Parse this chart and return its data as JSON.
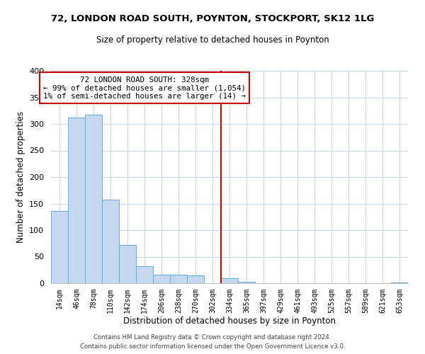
{
  "title": "72, LONDON ROAD SOUTH, POYNTON, STOCKPORT, SK12 1LG",
  "subtitle": "Size of property relative to detached houses in Poynton",
  "xlabel": "Distribution of detached houses by size in Poynton",
  "ylabel": "Number of detached properties",
  "bin_labels": [
    "14sqm",
    "46sqm",
    "78sqm",
    "110sqm",
    "142sqm",
    "174sqm",
    "206sqm",
    "238sqm",
    "270sqm",
    "302sqm",
    "334sqm",
    "365sqm",
    "397sqm",
    "429sqm",
    "461sqm",
    "493sqm",
    "525sqm",
    "557sqm",
    "589sqm",
    "621sqm",
    "653sqm"
  ],
  "bar_heights": [
    136,
    312,
    318,
    158,
    72,
    32,
    16,
    16,
    15,
    0,
    9,
    3,
    0,
    0,
    0,
    0,
    0,
    0,
    0,
    0,
    2
  ],
  "bar_color": "#c5d8f0",
  "bar_edge_color": "#6aaad4",
  "vline_x_idx": 10,
  "vline_color": "#cc0000",
  "annotation_text": "72 LONDON ROAD SOUTH: 328sqm\n← 99% of detached houses are smaller (1,054)\n1% of semi-detached houses are larger (14) →",
  "annotation_box_color": "#ffffff",
  "annotation_border_color": "#cc0000",
  "ylim": [
    0,
    400
  ],
  "yticks": [
    0,
    50,
    100,
    150,
    200,
    250,
    300,
    350,
    400
  ],
  "footer1": "Contains HM Land Registry data © Crown copyright and database right 2024.",
  "footer2": "Contains public sector information licensed under the Open Government Licence v3.0.",
  "background_color": "#ffffff",
  "grid_color": "#ccd8eb"
}
